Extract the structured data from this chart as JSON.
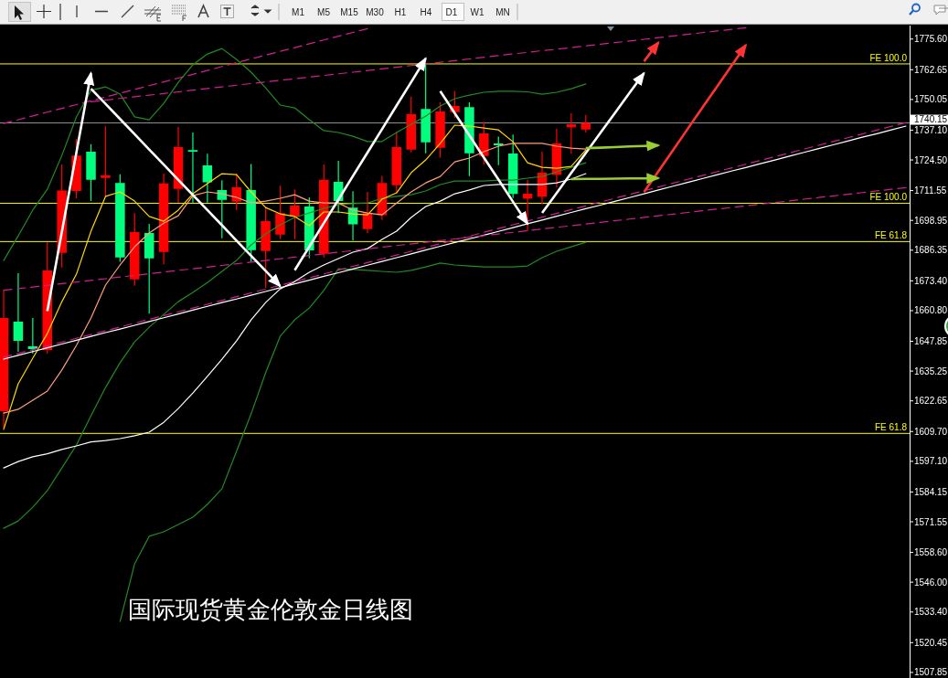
{
  "chart_data": {
    "type": "candlestick",
    "title": "国际现货黄金伦敦金日线图",
    "categories": [
      null,
      null,
      null,
      null,
      null,
      null,
      null,
      null,
      null,
      null,
      null,
      null,
      null,
      null,
      null,
      null,
      null,
      null,
      null,
      null,
      null,
      null,
      null,
      null,
      null,
      null,
      null,
      null,
      null,
      null,
      null,
      null,
      null,
      null,
      null,
      null,
      null,
      null,
      null,
      null,
      null,
      null,
      null,
      null,
      null,
      null,
      null,
      null,
      null,
      null,
      null,
      null,
      null,
      null,
      null,
      null,
      null,
      null,
      null,
      null,
      null,
      null,
      null
    ],
    "ohlc": [
      [
        1618.3,
        1669.3,
        1611.3,
        1657.7
      ],
      [
        1656.1,
        1676.6,
        1643.4,
        1648.0
      ],
      [
        1645.7,
        1657.7,
        1642.6,
        1644.6
      ],
      [
        1644.2,
        1689.7,
        1642.6,
        1677.8
      ],
      [
        1685.2,
        1722.6,
        1679.0,
        1711.6
      ],
      [
        1711.4,
        1733.4,
        1708.3,
        1726.4
      ],
      [
        1728.0,
        1731.2,
        1707.1,
        1716.1
      ],
      [
        1716.9,
        1738.7,
        1709.0,
        1718.0
      ],
      [
        1714.8,
        1718.4,
        1681.4,
        1683.3
      ],
      [
        1674.0,
        1702.0,
        1671.3,
        1694.0
      ],
      [
        1693.6,
        1697.5,
        1659.5,
        1682.9
      ],
      [
        1685.6,
        1718.7,
        1680.4,
        1714.6
      ],
      [
        1712.3,
        1738.4,
        1706.5,
        1729.9
      ],
      [
        1728.7,
        1736.1,
        1706.5,
        1728.0
      ],
      [
        1722.2,
        1727.1,
        1706.5,
        1715.1
      ],
      [
        1711.8,
        1715.9,
        1691.4,
        1707.6
      ],
      [
        1706.8,
        1718.7,
        1703.3,
        1712.9
      ],
      [
        1711.8,
        1722.8,
        1681.4,
        1686.4
      ],
      [
        1686.0,
        1704.5,
        1670.4,
        1698.6
      ],
      [
        1692.9,
        1713.6,
        1691.0,
        1702.0
      ],
      [
        1700.6,
        1712.1,
        1691.0,
        1705.2
      ],
      [
        1704.8,
        1708.7,
        1682.9,
        1686.3
      ],
      [
        1684.8,
        1722.6,
        1683.3,
        1716.1
      ],
      [
        1715.2,
        1724.1,
        1702.0,
        1707.1
      ],
      [
        1704.3,
        1711.3,
        1690.4,
        1697.3
      ],
      [
        1695.3,
        1711.0,
        1693.6,
        1702.0
      ],
      [
        1701.1,
        1717.8,
        1699.1,
        1714.8
      ],
      [
        1713.8,
        1736.5,
        1710.3,
        1729.9
      ],
      [
        1728.9,
        1751.3,
        1727.7,
        1743.8
      ],
      [
        1746.1,
        1764.8,
        1727.3,
        1732.0
      ],
      [
        1729.6,
        1748.9,
        1725.5,
        1745.0
      ],
      [
        1744.7,
        1753.7,
        1742.3,
        1747.3
      ],
      [
        1746.8,
        1748.9,
        1717.7,
        1727.3
      ],
      [
        1726.2,
        1740.6,
        1722.6,
        1735.7
      ],
      [
        1731.5,
        1734.4,
        1722.3,
        1730.7
      ],
      [
        1727.2,
        1735.2,
        1708.4,
        1710.1
      ],
      [
        1708.2,
        1716.1,
        1694.4,
        1710.2
      ],
      [
        1709.0,
        1728.0,
        1705.8,
        1719.1
      ],
      [
        1718.2,
        1737.7,
        1712.9,
        1731.5
      ],
      [
        1738.3,
        1744.2,
        1727.1,
        1739.6
      ],
      [
        1737.4,
        1743.5,
        1736.1,
        1740.15
      ],
      null,
      null,
      null,
      null,
      null,
      null,
      null,
      null,
      null,
      null,
      null,
      null,
      null,
      null,
      null,
      null,
      null,
      null,
      null,
      null,
      null,
      null
    ],
    "colors": [
      "#ff0000",
      "#00ff7f",
      "#00ff7f",
      "#ff0000",
      "#ff0000",
      "#ff0000",
      "#00ff7f",
      "#ff0000",
      "#00ff7f",
      "#ff0000",
      "#00ff7f",
      "#ff0000",
      "#ff0000",
      "#00ff7f",
      "#00ff7f",
      "#00ff7f",
      "#ff0000",
      "#00ff7f",
      "#ff0000",
      "#ff0000",
      "#ff0000",
      "#00ff7f",
      "#ff0000",
      "#00ff7f",
      "#00ff7f",
      "#ff0000",
      "#ff0000",
      "#ff0000",
      "#ff0000",
      "#00ff7f",
      "#ff0000",
      "#ff0000",
      "#00ff7f",
      "#ff0000",
      "#00ff7f",
      "#00ff7f",
      "#ff0000",
      "#ff0000",
      "#ff0000",
      "#ff0000",
      "#ff0000",
      null,
      null,
      null,
      null,
      null,
      null,
      null,
      null,
      null,
      null,
      null,
      null,
      null,
      null,
      null,
      null,
      null,
      null,
      null,
      null,
      null,
      null
    ],
    "ylim": [
      1505.5,
      1781.3
    ],
    "yticks": [
      {
        "value": 1775.6,
        "label": "1775.60"
      },
      {
        "value": 1762.65,
        "label": "1762.65"
      },
      {
        "value": 1750.05,
        "label": "1750.05"
      },
      {
        "value": 1737.1,
        "label": "1737.10"
      },
      {
        "value": 1724.5,
        "label": "1724.50"
      },
      {
        "value": 1711.55,
        "label": "1711.55"
      },
      {
        "value": 1698.95,
        "label": "1698.95"
      },
      {
        "value": 1686.35,
        "label": "1686.35"
      },
      {
        "value": 1673.4,
        "label": "1673.40"
      },
      {
        "value": 1660.8,
        "label": "1660.80"
      },
      {
        "value": 1647.85,
        "label": "1647.85"
      },
      {
        "value": 1635.25,
        "label": "1635.25"
      },
      {
        "value": 1622.65,
        "label": "1622.65"
      },
      {
        "value": 1609.7,
        "label": "1609.70"
      },
      {
        "value": 1597.1,
        "label": "1597.10"
      },
      {
        "value": 1584.15,
        "label": "1584.15"
      },
      {
        "value": 1571.55,
        "label": "1571.55"
      },
      {
        "value": 1558.6,
        "label": "1558.60"
      },
      {
        "value": 1546.0,
        "label": "1546.00"
      },
      {
        "value": 1533.4,
        "label": "1533.40"
      },
      {
        "value": 1520.45,
        "label": "1520.45"
      },
      {
        "value": 1507.85,
        "label": "1507.85"
      }
    ],
    "tick_labels": "y",
    "series": [
      {
        "type": "line",
        "color": "#228b22",
        "values": [
          1682.0,
          1692.4,
          1703.3,
          1712.1,
          1726.4,
          1742.7,
          1753.9,
          1755.4,
          1752.3,
          1742.7,
          1741.5,
          1748.4,
          1757.3,
          1764.7,
          1769.3,
          1771.6,
          1767.0,
          1761.6,
          1755.0,
          1747.7,
          1746.5,
          1741.5,
          1736.9,
          1736.1,
          1734.5,
          1732.3,
          1732.3,
          1736.1,
          1739.6,
          1743.0,
          1747.3,
          1750.4,
          1751.9,
          1753.1,
          1753.5,
          1753.5,
          1753.3,
          1752.3,
          1753.1,
          1754.6,
          1756.6,
          null,
          null,
          null,
          null,
          null,
          null,
          null,
          null,
          null,
          null,
          null,
          null,
          null,
          null,
          null,
          null,
          null,
          null,
          null,
          null,
          null,
          null
        ]
      },
      {
        "type": "line",
        "color": "#228b22",
        "values": [
          1568.8,
          1571.9,
          1577.7,
          1584.7,
          1594.3,
          1604.0,
          1616.4,
          1628.3,
          1638.8,
          1647.6,
          1653.8,
          1659.2,
          1664.6,
          1668.5,
          1672.7,
          1677.4,
          1682.0,
          1688.6,
          1693.2,
          1697.1,
          1700.2,
          1702.1,
          1704.0,
          1705.6,
          1706.0,
          1706.3,
          1708.3,
          1709.1,
          1709.8,
          1711.4,
          1714.1,
          1715.6,
          1715.6,
          1715.6,
          1716.0,
          1716.0,
          1716.8,
          1717.5,
          1719.5,
          1721.4,
          1723.3,
          null,
          null,
          null,
          null,
          null,
          null,
          null,
          null,
          null,
          null,
          null,
          null,
          null,
          null,
          null,
          null,
          null,
          null,
          null,
          null,
          null,
          null
        ]
      },
      {
        "type": "line",
        "color": "#228b22",
        "values": [
          null,
          null,
          null,
          null,
          null,
          null,
          null,
          null,
          1529.4,
          1553.8,
          1565.4,
          1567.3,
          1570.4,
          1573.5,
          1578.9,
          1585.5,
          1601.3,
          1617.1,
          1634.5,
          1650.0,
          1656.9,
          1661.9,
          1669.3,
          1678.5,
          1678.2,
          1677.8,
          1677.4,
          1677.0,
          1677.8,
          1679.3,
          1680.9,
          1680.1,
          1679.7,
          1679.3,
          1679.3,
          1679.3,
          1679.7,
          1683.2,
          1685.9,
          1687.8,
          1689.7,
          null,
          null,
          null,
          null,
          null,
          null,
          null,
          null,
          null,
          null,
          null,
          null,
          null,
          null,
          null,
          null,
          null,
          null,
          null,
          null,
          null,
          null
        ]
      },
      {
        "type": "line",
        "color": "#ffd700",
        "values": [
          1610.6,
          1629.9,
          1640.7,
          1651.1,
          1664.6,
          1676.2,
          1694.4,
          1709.1,
          1711.0,
          1707.1,
          1700.6,
          1698.6,
          1703.3,
          1710.2,
          1714.5,
          1718.7,
          1718.3,
          1711.0,
          1704.4,
          1701.7,
          1700.6,
          1696.7,
          1702.5,
          1702.5,
          1701.7,
          1701.3,
          1707.9,
          1710.6,
          1719.1,
          1724.5,
          1731.5,
          1739.2,
          1738.8,
          1738.0,
          1737.2,
          1732.2,
          1723.3,
          1721.4,
          1721.0,
          1721.8,
          1728.7,
          null,
          null,
          null,
          null,
          null,
          null,
          null,
          null,
          null,
          null,
          null,
          null,
          null,
          null,
          null,
          null,
          null,
          null,
          null,
          null,
          null,
          null
        ]
      },
      {
        "type": "line",
        "color": "#ffa07a",
        "values": [
          1617.5,
          1619.1,
          1622.9,
          1626.8,
          1635.7,
          1646.1,
          1657.7,
          1671.6,
          1680.1,
          1687.8,
          1693.6,
          1697.8,
          1700.9,
          1709.4,
          1711.0,
          1710.2,
          1708.7,
          1706.3,
          1707.1,
          1708.3,
          1709.8,
          1707.1,
          1706.3,
          1706.3,
          1703.3,
          1702.1,
          1701.3,
          1706.3,
          1711.0,
          1714.8,
          1717.5,
          1723.7,
          1725.3,
          1728.0,
          1730.3,
          1731.5,
          1731.5,
          1731.5,
          1730.3,
          1729.5,
          1729.1,
          null,
          null,
          null,
          null,
          null,
          null,
          null,
          null,
          null,
          null,
          null,
          null,
          null,
          null,
          null,
          null,
          null,
          null,
          null,
          null,
          null,
          null
        ]
      },
      {
        "type": "line",
        "color": "#ffffff",
        "values": [
          1594.3,
          1597.0,
          1599.0,
          1600.3,
          1602.1,
          1603.6,
          1605.3,
          1605.9,
          1606.7,
          1607.9,
          1609.4,
          1613.6,
          1619.4,
          1626.0,
          1633.0,
          1640.3,
          1648.0,
          1656.9,
          1664.2,
          1670.0,
          1673.1,
          1677.0,
          1680.1,
          1682.8,
          1685.5,
          1687.0,
          1690.9,
          1694.4,
          1700.2,
          1704.8,
          1707.1,
          1710.2,
          1711.8,
          1713.7,
          1714.1,
          1714.1,
          1714.1,
          1714.1,
          1714.8,
          1716.4,
          1718.7,
          null,
          null,
          null,
          null,
          null,
          null,
          null,
          null,
          null,
          null,
          null,
          null,
          null,
          null,
          null,
          null,
          null,
          null,
          null,
          null,
          null,
          null
        ]
      },
      {
        "type": "line",
        "color": "#ffffff",
        "values": [
          1640.3,
          1641.9,
          1643.5,
          1645.1,
          1646.7,
          1648.3,
          1649.9,
          1651.5,
          1653.0,
          1654.6,
          1656.2,
          1657.8,
          1659.4,
          1661.0,
          1662.6,
          1664.2,
          1665.7,
          1667.3,
          1668.9,
          1670.5,
          1672.1,
          1673.7,
          1675.3,
          1676.8,
          1678.4,
          1680.0,
          1681.6,
          1683.2,
          1684.8,
          1686.4,
          1688.0,
          1689.6,
          1691.1,
          1692.7,
          1694.3,
          1695.9,
          1697.5,
          1699.1,
          1700.7,
          1702.3,
          1703.9,
          1705.4,
          1707.0,
          1708.6,
          1710.2,
          1711.8,
          1713.4,
          1715.0,
          1716.6,
          1718.2,
          1719.8,
          1721.3,
          1722.9,
          1724.5,
          1726.1,
          1727.7,
          1729.3,
          1730.9,
          1732.5,
          1734.1,
          1735.6,
          1737.2,
          1738.8
        ]
      },
      {
        "type": "line",
        "color": "#d02090",
        "line_style": "dashed",
        "values": [
          1641.1,
          1642.7,
          1644.3,
          1645.9,
          1647.5,
          1649.1,
          1650.7,
          1652.3,
          1653.9,
          1655.5,
          1657.1,
          1658.7,
          1660.3,
          1661.9,
          1663.5,
          1665.1,
          1666.7,
          1668.3,
          1669.9,
          1671.5,
          1673.1,
          1674.7,
          1676.3,
          1677.9,
          1679.5,
          1681.1,
          1682.7,
          1684.3,
          1685.9,
          1687.5,
          1689.1,
          1690.7,
          1692.3,
          1693.9,
          1695.5,
          1697.1,
          1698.7,
          1700.3,
          1701.9,
          1703.5,
          1705.1,
          1706.7,
          1708.3,
          1709.9,
          1711.5,
          1713.1,
          1714.7,
          1716.3,
          1717.9,
          1719.5,
          1721.1,
          1722.7,
          1724.3,
          1725.9,
          1727.5,
          1729.1,
          1730.7,
          1732.3,
          1733.9,
          1735.5,
          1737.1,
          1738.7,
          1740.3
        ]
      },
      {
        "type": "line",
        "color": "#d02090",
        "line_style": "dashed",
        "values": [
          1669.4,
          1670.1,
          1670.8,
          1671.5,
          1672.2,
          1672.9,
          1673.6,
          1674.3,
          1675.0,
          1675.7,
          1676.4,
          1677.1,
          1677.8,
          1678.5,
          1679.2,
          1679.9,
          1680.6,
          1681.3,
          1682.0,
          1682.7,
          1683.4,
          1684.1,
          1684.8,
          1685.5,
          1686.2,
          1686.9,
          1687.6,
          1688.3,
          1689.0,
          1689.7,
          1690.4,
          1691.1,
          1691.8,
          1692.5,
          1693.2,
          1693.9,
          1694.6,
          1695.3,
          1696.0,
          1696.7,
          1697.4,
          1698.1,
          1698.8,
          1699.5,
          1700.2,
          1700.9,
          1701.6,
          1702.3,
          1703.0,
          1703.7,
          1704.4,
          1705.1,
          1705.8,
          1706.5,
          1707.2,
          1707.9,
          1708.6,
          1709.3,
          1710.0,
          1710.7,
          1711.4,
          1712.1,
          1712.8
        ]
      },
      {
        "type": "line",
        "color": "#d02090",
        "line_style": "dashed",
        "values": [
          null,
          null,
          null,
          null,
          null,
          null,
          1749.1,
          1749.8,
          1750.5,
          1751.2,
          1751.9,
          1752.6,
          1753.3,
          1754.0,
          1754.7,
          1755.4,
          1756.1,
          1756.8,
          1757.5,
          1758.2,
          1758.8,
          1759.5,
          1760.2,
          1760.9,
          1761.6,
          1762.3,
          1763.0,
          1763.7,
          1764.4,
          1765.1,
          1765.8,
          1766.5,
          1767.2,
          1767.9,
          1768.6,
          1769.3,
          1770.0,
          1770.7,
          1771.3,
          1772.0,
          1772.7,
          1773.4,
          1774.1,
          1774.8,
          1775.5,
          1776.2,
          1776.9,
          1777.6,
          1778.3,
          1779.0,
          1779.7,
          1780.4,
          null,
          null,
          null,
          null,
          null,
          null,
          null,
          null,
          null,
          null,
          null
        ]
      },
      {
        "type": "line",
        "color": "#d02090",
        "line_style": "dashed",
        "values": [
          1739.9,
          1741.5,
          1743.1,
          1744.7,
          1746.3,
          1747.9,
          1749.5,
          1751.1,
          1752.7,
          1754.3,
          1755.9,
          1757.5,
          1759.1,
          1760.7,
          1762.3,
          1764.0,
          1765.6,
          1767.2,
          1768.8,
          1770.4,
          1772.0,
          1773.6,
          1775.2,
          1776.8,
          1778.4,
          1780.0,
          null,
          null,
          null,
          null,
          null,
          null,
          null,
          null,
          null,
          null,
          null,
          null,
          null,
          null,
          null,
          null,
          null,
          null,
          null,
          null,
          null,
          null,
          null,
          null,
          null,
          null,
          null,
          null,
          null,
          null,
          null,
          null,
          null,
          null,
          null,
          null,
          null
        ]
      },
      {
        "type": "line",
        "color": "#ffffff",
        "values": [
          null,
          null,
          null,
          1660.6,
          1694.1,
          1727.7,
          1761.2,
          null,
          null,
          null,
          null,
          null,
          null,
          null,
          null,
          null,
          null,
          null,
          null,
          null,
          null,
          null,
          null,
          null,
          null,
          null,
          null,
          null,
          null,
          null,
          null,
          null,
          null,
          null,
          null,
          null,
          null,
          null,
          null,
          null,
          null,
          null,
          null,
          null,
          null,
          null,
          null,
          null,
          null,
          null,
          null,
          null,
          null,
          null,
          null,
          null,
          null,
          null,
          null,
          null,
          null,
          null,
          null
        ]
      },
      {
        "type": "line",
        "color": "#ffffff",
        "values": [
          null,
          null,
          null,
          null,
          null,
          null,
          1754.6,
          1748.2,
          1741.8,
          1735.4,
          1728.9,
          1722.5,
          1716.1,
          1709.7,
          1703.3,
          1696.9,
          1690.4,
          1684.0,
          1677.6,
          1671.2,
          null,
          null,
          null,
          null,
          null,
          null,
          null,
          null,
          null,
          null,
          null,
          null,
          null,
          null,
          null,
          null,
          null,
          null,
          null,
          null,
          null,
          null,
          null,
          null,
          null,
          null,
          null,
          null,
          null,
          null,
          null,
          null,
          null,
          null,
          null,
          null,
          null,
          null,
          null,
          null,
          null,
          null,
          null
        ]
      },
      {
        "type": "line",
        "color": "#ffffff",
        "values": [
          null,
          null,
          null,
          null,
          null,
          null,
          null,
          null,
          null,
          null,
          null,
          null,
          null,
          null,
          null,
          null,
          null,
          null,
          null,
          null,
          1677.9,
          1687.8,
          1697.8,
          1707.7,
          1717.7,
          1727.6,
          1737.5,
          1747.5,
          1757.4,
          1767.4,
          null,
          null,
          null,
          null,
          null,
          null,
          null,
          null,
          null,
          null,
          null,
          null,
          null,
          null,
          null,
          null,
          null,
          null,
          null,
          null,
          null,
          null,
          null,
          null,
          null,
          null,
          null,
          null,
          null,
          null,
          null,
          null,
          null
        ]
      },
      {
        "type": "line",
        "color": "#ffffff",
        "values": [
          null,
          null,
          null,
          null,
          null,
          null,
          null,
          null,
          null,
          null,
          null,
          null,
          null,
          null,
          null,
          null,
          null,
          null,
          null,
          null,
          null,
          null,
          null,
          null,
          null,
          null,
          null,
          null,
          null,
          null,
          1753.6,
          1744.2,
          1734.9,
          1725.5,
          1716.2,
          1706.8,
          1697.5,
          null,
          null,
          null,
          null,
          null,
          null,
          null,
          null,
          null,
          null,
          null,
          null,
          null,
          null,
          null,
          null,
          null,
          null,
          null,
          null,
          null,
          null,
          null,
          null,
          null,
          null
        ]
      },
      {
        "type": "line",
        "color": "#ffffff",
        "values": [
          null,
          null,
          null,
          null,
          null,
          null,
          null,
          null,
          null,
          null,
          null,
          null,
          null,
          null,
          null,
          null,
          null,
          null,
          null,
          null,
          null,
          null,
          null,
          null,
          null,
          null,
          null,
          null,
          null,
          null,
          null,
          null,
          null,
          null,
          null,
          null,
          null,
          1702.1,
          1710.5,
          1719.0,
          1727.4,
          1735.9,
          1744.3,
          1752.8,
          1761.2,
          null,
          null,
          null,
          null,
          null,
          null,
          null,
          null,
          null,
          null,
          null,
          null,
          null,
          null,
          null,
          null,
          null,
          null
        ]
      },
      {
        "type": "line",
        "color": "#ff3333",
        "values": [
          null,
          null,
          null,
          null,
          null,
          null,
          null,
          null,
          null,
          null,
          null,
          null,
          null,
          null,
          null,
          null,
          null,
          null,
          null,
          null,
          null,
          null,
          null,
          null,
          null,
          null,
          null,
          null,
          null,
          null,
          null,
          null,
          null,
          null,
          null,
          null,
          null,
          null,
          null,
          null,
          null,
          null,
          null,
          null,
          1766.2,
          1774.2,
          null,
          null,
          null,
          null,
          null,
          null,
          null,
          null,
          null,
          null,
          null,
          null,
          null,
          null,
          null,
          null,
          null
        ]
      },
      {
        "type": "line",
        "color": "#ff3333",
        "values": [
          null,
          null,
          null,
          null,
          null,
          null,
          null,
          null,
          null,
          null,
          null,
          null,
          null,
          null,
          null,
          null,
          null,
          null,
          null,
          null,
          null,
          null,
          null,
          null,
          null,
          null,
          null,
          null,
          null,
          null,
          null,
          null,
          null,
          null,
          null,
          null,
          null,
          null,
          null,
          null,
          null,
          null,
          null,
          null,
          1710.9,
          1719.8,
          1728.7,
          1737.6,
          1746.5,
          1755.3,
          1764.2,
          1773.1,
          null,
          null,
          null,
          null,
          null,
          null,
          null,
          null,
          null,
          null,
          null
        ]
      },
      {
        "type": "line",
        "color": "#9acd32",
        "values": [
          null,
          null,
          null,
          null,
          null,
          null,
          null,
          null,
          null,
          null,
          null,
          null,
          null,
          null,
          null,
          null,
          null,
          null,
          null,
          null,
          null,
          null,
          null,
          null,
          null,
          null,
          null,
          null,
          null,
          null,
          null,
          null,
          null,
          null,
          null,
          null,
          null,
          null,
          null,
          null,
          1729.5,
          1729.7,
          1729.9,
          1730.2,
          1730.4,
          1730.7,
          null,
          null,
          null,
          null,
          null,
          null,
          null,
          null,
          null,
          null,
          null,
          null,
          null,
          null,
          null,
          null,
          null
        ]
      },
      {
        "type": "line",
        "color": "#9acd32",
        "values": [
          null,
          null,
          null,
          null,
          null,
          null,
          null,
          null,
          null,
          null,
          null,
          null,
          null,
          null,
          null,
          null,
          null,
          null,
          null,
          null,
          null,
          null,
          null,
          null,
          null,
          null,
          null,
          null,
          null,
          null,
          null,
          null,
          null,
          null,
          null,
          null,
          null,
          null,
          null,
          1716.4,
          1716.5,
          1716.5,
          1716.6,
          1716.7,
          1716.7,
          1716.8,
          null,
          null,
          null,
          null,
          null,
          null,
          null,
          null,
          null,
          null,
          null,
          null,
          null,
          null,
          null,
          null,
          null
        ]
      }
    ],
    "ref_lines": [
      {
        "axis": "y",
        "value": 1740.15,
        "label": "1740.15"
      },
      {
        "axis": "y",
        "value": 1765.1,
        "label": "FE 100.0",
        "color": "#ffff00"
      },
      {
        "axis": "y",
        "value": 1706.2,
        "label": "FE 100.0",
        "color": "#ffff00"
      },
      {
        "axis": "y",
        "value": 1690.0,
        "label": "FE 61.8",
        "color": "#ffff00"
      },
      {
        "axis": "y",
        "value": 1608.9,
        "label": "FE 61.8",
        "color": "#ffff00"
      }
    ],
    "annotations": [
      "M1",
      "M5",
      "M15",
      "M30",
      "H1",
      "H4",
      "D1",
      "W1",
      "MN"
    ]
  }
}
